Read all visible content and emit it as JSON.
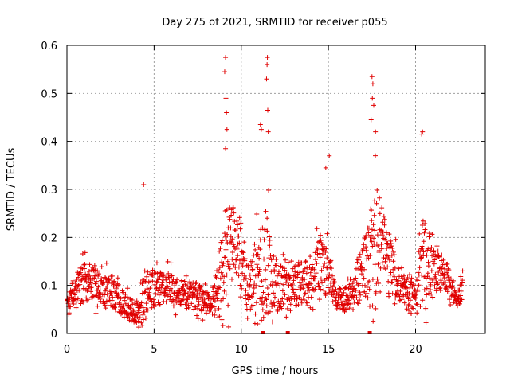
{
  "chart_data": {
    "type": "scatter",
    "title": "Day 275 of 2021, SRMTID for receiver p055",
    "xlabel": "GPS time / hours",
    "ylabel": "SRMTID / TECUs",
    "xlim": [
      0,
      24
    ],
    "ylim": [
      0,
      0.6
    ],
    "xticks": [
      0,
      5,
      10,
      15,
      20
    ],
    "xtick_labels": [
      "0",
      "5",
      "10",
      "15",
      "20"
    ],
    "yticks": [
      0,
      0.1,
      0.2,
      0.3,
      0.4,
      0.5,
      0.6
    ],
    "ytick_labels": [
      "0",
      "0.1",
      "0.2",
      "0.3",
      "0.4",
      "0.5",
      "0.6"
    ],
    "grid": true,
    "marker": "+",
    "color": "#e00000",
    "gap_markers_x": [
      11.2,
      12.65,
      17.35
    ],
    "envelope": {
      "x": [
        0,
        0.5,
        1,
        1.5,
        2,
        2.5,
        3,
        3.5,
        4,
        4.3,
        4.6,
        5,
        5.5,
        6,
        6.5,
        7,
        7.5,
        8,
        8.5,
        8.9,
        9.2,
        9.6,
        10,
        10.5,
        11,
        11.4,
        11.8,
        12.2,
        12.6,
        13,
        13.5,
        14,
        14.5,
        15,
        15.5,
        16,
        16.5,
        17,
        17.4,
        17.8,
        18.2,
        18.6,
        19,
        19.5,
        20,
        20.4,
        20.8,
        21.2,
        21.6,
        22,
        22.4,
        22.7
      ],
      "base": [
        0.06,
        0.09,
        0.1,
        0.1,
        0.09,
        0.09,
        0.07,
        0.05,
        0.04,
        0.06,
        0.08,
        0.09,
        0.09,
        0.09,
        0.08,
        0.08,
        0.07,
        0.06,
        0.07,
        0.1,
        0.16,
        0.18,
        0.14,
        0.08,
        0.1,
        0.13,
        0.1,
        0.09,
        0.1,
        0.1,
        0.1,
        0.11,
        0.14,
        0.12,
        0.07,
        0.07,
        0.09,
        0.12,
        0.14,
        0.16,
        0.17,
        0.14,
        0.1,
        0.08,
        0.07,
        0.14,
        0.14,
        0.13,
        0.12,
        0.1,
        0.07,
        0.1
      ],
      "spread": [
        0.03,
        0.07,
        0.08,
        0.08,
        0.07,
        0.07,
        0.06,
        0.05,
        0.04,
        0.09,
        0.08,
        0.07,
        0.07,
        0.07,
        0.06,
        0.06,
        0.06,
        0.05,
        0.08,
        0.2,
        0.25,
        0.14,
        0.1,
        0.1,
        0.2,
        0.28,
        0.12,
        0.1,
        0.1,
        0.09,
        0.1,
        0.09,
        0.12,
        0.1,
        0.05,
        0.05,
        0.07,
        0.12,
        0.22,
        0.26,
        0.15,
        0.12,
        0.08,
        0.07,
        0.06,
        0.2,
        0.15,
        0.1,
        0.07,
        0.06,
        0.04,
        0.06
      ]
    },
    "peaks": [
      {
        "x": 9.1,
        "y": 0.575
      },
      {
        "x": 9.05,
        "y": 0.545
      },
      {
        "x": 9.12,
        "y": 0.49
      },
      {
        "x": 9.15,
        "y": 0.46
      },
      {
        "x": 9.18,
        "y": 0.425
      },
      {
        "x": 9.1,
        "y": 0.385
      },
      {
        "x": 11.5,
        "y": 0.575
      },
      {
        "x": 11.48,
        "y": 0.56
      },
      {
        "x": 11.45,
        "y": 0.53
      },
      {
        "x": 11.52,
        "y": 0.465
      },
      {
        "x": 11.1,
        "y": 0.435
      },
      {
        "x": 11.15,
        "y": 0.425
      },
      {
        "x": 11.55,
        "y": 0.42
      },
      {
        "x": 17.5,
        "y": 0.535
      },
      {
        "x": 17.55,
        "y": 0.52
      },
      {
        "x": 17.52,
        "y": 0.49
      },
      {
        "x": 17.6,
        "y": 0.475
      },
      {
        "x": 17.45,
        "y": 0.445
      },
      {
        "x": 17.7,
        "y": 0.42
      },
      {
        "x": 20.4,
        "y": 0.42
      },
      {
        "x": 20.35,
        "y": 0.415
      },
      {
        "x": 4.4,
        "y": 0.31
      },
      {
        "x": 15.05,
        "y": 0.37
      },
      {
        "x": 14.85,
        "y": 0.345
      }
    ]
  }
}
